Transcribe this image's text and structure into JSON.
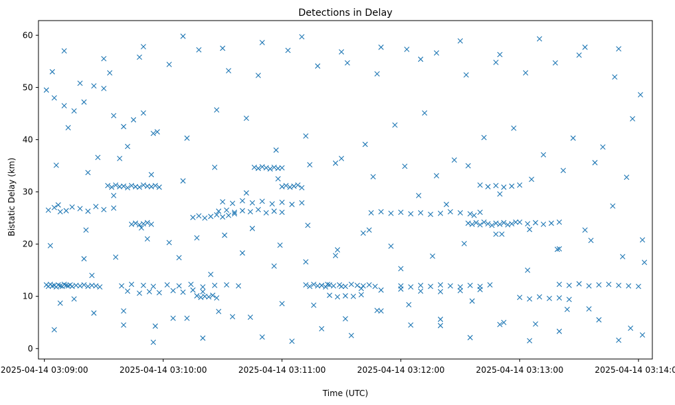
{
  "chart_data": {
    "type": "scatter",
    "title": "Detections in Delay",
    "xlabel": "Time (UTC)",
    "ylabel": "Bistatic Delay (km)",
    "xlim": [
      "2025-04-14 03:08:57",
      "2025-04-14 03:14:07"
    ],
    "ylim": [
      -2.0,
      62.8
    ],
    "x_ticks": [
      "2025-04-14 03:09:00",
      "2025-04-14 03:10:00",
      "2025-04-14 03:11:00",
      "2025-04-14 03:12:00",
      "2025-04-14 03:13:00",
      "2025-04-14 03:14:00"
    ],
    "y_ticks": [
      0,
      10,
      20,
      30,
      40,
      50,
      60
    ],
    "marker": "x",
    "color": "#1f77b4",
    "grid": false,
    "series": [
      {
        "x": [
          "2025-04-14 03:09:01",
          "2025-04-14 03:09:02",
          "2025-04-14 03:09:03",
          "2025-04-14 03:09:04",
          "2025-04-14 03:09:05",
          "2025-04-14 03:09:06",
          "2025-04-14 03:09:07",
          "2025-04-14 03:09:08",
          "2025-04-14 03:09:09",
          "2025-04-14 03:09:10",
          "2025-04-14 03:09:11",
          "2025-04-14 03:09:12",
          "2025-04-14 03:09:13",
          "2025-04-14 03:09:14",
          "2025-04-14 03:09:16",
          "2025-04-14 03:09:18",
          "2025-04-14 03:09:20",
          "2025-04-14 03:09:22",
          "2025-04-14 03:09:24",
          "2025-04-14 03:09:26",
          "2025-04-14 03:09:28",
          "2025-04-14 03:09:02",
          "2025-04-14 03:09:05",
          "2025-04-14 03:09:08",
          "2025-04-14 03:09:11",
          "2025-04-14 03:09:14",
          "2025-04-14 03:09:18",
          "2025-04-14 03:09:22",
          "2025-04-14 03:09:26",
          "2025-04-14 03:09:30",
          "2025-04-14 03:09:35",
          "2025-04-14 03:09:01",
          "2025-04-14 03:09:05",
          "2025-04-14 03:09:10",
          "2025-04-14 03:09:15",
          "2025-04-14 03:09:20",
          "2025-04-14 03:09:25",
          "2025-04-14 03:09:30",
          "2025-04-14 03:09:35",
          "2025-04-14 03:09:40",
          "2025-04-14 03:09:45",
          "2025-04-14 03:09:50",
          "2025-04-14 03:09:55",
          "2025-04-14 03:09:32",
          "2025-04-14 03:09:34",
          "2025-04-14 03:09:36",
          "2025-04-14 03:09:38",
          "2025-04-14 03:09:40",
          "2025-04-14 03:09:42",
          "2025-04-14 03:09:44",
          "2025-04-14 03:09:46",
          "2025-04-14 03:09:48",
          "2025-04-14 03:09:50",
          "2025-04-14 03:09:52",
          "2025-04-14 03:09:54",
          "2025-04-14 03:09:56",
          "2025-04-14 03:09:58",
          "2025-04-14 03:09:44",
          "2025-04-14 03:09:46",
          "2025-04-14 03:09:48",
          "2025-04-14 03:09:50",
          "2025-04-14 03:09:52",
          "2025-04-14 03:09:54",
          "2025-04-14 03:09:42",
          "2025-04-14 03:09:48",
          "2025-04-14 03:09:53",
          "2025-04-14 03:09:58",
          "2025-04-14 03:10:05",
          "2025-04-14 03:10:10",
          "2025-04-14 03:10:15",
          "2025-04-14 03:10:20",
          "2025-04-14 03:09:39",
          "2025-04-14 03:09:44",
          "2025-04-14 03:09:50",
          "2025-04-14 03:09:55",
          "2025-04-14 03:10:02",
          "2025-04-14 03:10:08",
          "2025-04-14 03:10:14",
          "2025-04-14 03:10:20",
          "2025-04-14 03:10:26",
          "2025-04-14 03:10:32",
          "2025-04-14 03:10:38",
          "2025-04-14 03:10:15",
          "2025-04-14 03:10:18",
          "2025-04-14 03:10:21",
          "2025-04-14 03:10:24",
          "2025-04-14 03:10:27",
          "2025-04-14 03:10:30",
          "2025-04-14 03:10:33",
          "2025-04-14 03:10:36",
          "2025-04-14 03:10:17",
          "2025-04-14 03:10:19",
          "2025-04-14 03:10:21",
          "2025-04-14 03:10:23",
          "2025-04-14 03:10:25",
          "2025-04-14 03:10:27",
          "2025-04-14 03:10:28",
          "2025-04-14 03:10:32",
          "2025-04-14 03:10:36",
          "2025-04-14 03:10:40",
          "2025-04-14 03:10:44",
          "2025-04-14 03:10:48",
          "2025-04-14 03:10:52",
          "2025-04-14 03:10:56",
          "2025-04-14 03:11:00",
          "2025-04-14 03:10:30",
          "2025-04-14 03:10:35",
          "2025-04-14 03:10:40",
          "2025-04-14 03:10:45",
          "2025-04-14 03:10:50",
          "2025-04-14 03:10:55",
          "2025-04-14 03:11:00",
          "2025-04-14 03:11:05",
          "2025-04-14 03:11:10",
          "2025-04-14 03:10:46",
          "2025-04-14 03:10:48",
          "2025-04-14 03:10:50",
          "2025-04-14 03:10:52",
          "2025-04-14 03:10:54",
          "2025-04-14 03:10:56",
          "2025-04-14 03:10:58",
          "2025-04-14 03:11:00",
          "2025-04-14 03:11:00",
          "2025-04-14 03:11:02",
          "2025-04-14 03:11:04",
          "2025-04-14 03:11:06",
          "2025-04-14 03:11:08",
          "2025-04-14 03:11:10",
          "2025-04-14 03:11:12",
          "2025-04-14 03:11:14",
          "2025-04-14 03:11:16",
          "2025-04-14 03:11:18",
          "2025-04-14 03:11:20",
          "2025-04-14 03:11:22",
          "2025-04-14 03:11:24",
          "2025-04-14 03:11:20",
          "2025-04-14 03:11:23",
          "2025-04-14 03:11:26",
          "2025-04-14 03:11:29",
          "2025-04-14 03:11:32",
          "2025-04-14 03:11:35",
          "2025-04-14 03:11:38",
          "2025-04-14 03:11:41",
          "2025-04-14 03:11:44",
          "2025-04-14 03:11:47",
          "2025-04-14 03:11:24",
          "2025-04-14 03:11:28",
          "2025-04-14 03:11:32",
          "2025-04-14 03:11:36",
          "2025-04-14 03:11:40",
          "2025-04-14 03:11:30",
          "2025-04-14 03:11:40",
          "2025-04-14 03:11:50",
          "2025-04-14 03:12:00",
          "2025-04-14 03:12:10",
          "2025-04-14 03:12:20",
          "2025-04-14 03:12:30",
          "2025-04-14 03:12:40",
          "2025-04-14 03:11:45",
          "2025-04-14 03:11:50",
          "2025-04-14 03:11:55",
          "2025-04-14 03:12:00",
          "2025-04-14 03:12:05",
          "2025-04-14 03:12:10",
          "2025-04-14 03:12:15",
          "2025-04-14 03:12:20",
          "2025-04-14 03:12:25",
          "2025-04-14 03:12:30",
          "2025-04-14 03:12:35",
          "2025-04-14 03:12:40",
          "2025-04-14 03:12:00",
          "2025-04-14 03:12:05",
          "2025-04-14 03:12:10",
          "2025-04-14 03:12:15",
          "2025-04-14 03:12:20",
          "2025-04-14 03:12:25",
          "2025-04-14 03:12:30",
          "2025-04-14 03:12:35",
          "2025-04-14 03:12:40",
          "2025-04-14 03:12:45",
          "2025-04-14 03:12:34",
          "2025-04-14 03:12:36",
          "2025-04-14 03:12:38",
          "2025-04-14 03:12:40",
          "2025-04-14 03:12:42",
          "2025-04-14 03:12:44",
          "2025-04-14 03:12:46",
          "2025-04-14 03:12:48",
          "2025-04-14 03:12:50",
          "2025-04-14 03:12:52",
          "2025-04-14 03:12:54",
          "2025-04-14 03:12:56",
          "2025-04-14 03:12:58",
          "2025-04-14 03:12:40",
          "2025-04-14 03:12:44",
          "2025-04-14 03:12:48",
          "2025-04-14 03:12:52",
          "2025-04-14 03:12:56",
          "2025-04-14 03:13:00",
          "2025-04-14 03:13:00",
          "2025-04-14 03:13:04",
          "2025-04-14 03:13:08",
          "2025-04-14 03:13:12",
          "2025-04-14 03:13:16",
          "2025-04-14 03:13:20",
          "2025-04-14 03:13:20",
          "2025-04-14 03:13:25",
          "2025-04-14 03:13:30",
          "2025-04-14 03:13:35",
          "2025-04-14 03:13:40",
          "2025-04-14 03:13:45",
          "2025-04-14 03:13:50",
          "2025-04-14 03:13:55",
          "2025-04-14 03:14:00",
          "2025-04-14 03:13:00",
          "2025-04-14 03:13:05",
          "2025-04-14 03:13:10",
          "2025-04-14 03:13:15",
          "2025-04-14 03:13:20",
          "2025-04-14 03:13:25",
          "2025-04-14 03:09:05",
          "2025-04-14 03:09:15",
          "2025-04-14 03:09:25",
          "2025-04-14 03:09:40",
          "2025-04-14 03:09:55",
          "2025-04-14 03:10:05",
          "2025-04-14 03:10:20",
          "2025-04-14 03:10:35",
          "2025-04-14 03:10:50",
          "2025-04-14 03:11:05",
          "2025-04-14 03:11:20",
          "2025-04-14 03:11:35",
          "2025-04-14 03:11:50",
          "2025-04-14 03:12:05",
          "2025-04-14 03:12:20",
          "2025-04-14 03:12:35",
          "2025-04-14 03:12:50",
          "2025-04-14 03:13:05",
          "2025-04-14 03:13:20",
          "2025-04-14 03:13:35",
          "2025-04-14 03:13:50",
          "2025-04-14 03:14:02",
          "2025-04-14 03:09:10",
          "2025-04-14 03:09:30",
          "2025-04-14 03:09:50",
          "2025-04-14 03:10:10",
          "2025-04-14 03:10:30",
          "2025-04-14 03:10:50",
          "2025-04-14 03:11:10",
          "2025-04-14 03:11:30",
          "2025-04-14 03:11:50",
          "2025-04-14 03:12:10",
          "2025-04-14 03:12:30",
          "2025-04-14 03:12:50",
          "2025-04-14 03:13:10",
          "2025-04-14 03:13:30",
          "2025-04-14 03:13:50",
          "2025-04-14 03:09:12",
          "2025-04-14 03:09:27",
          "2025-04-14 03:09:42",
          "2025-04-14 03:09:57",
          "2025-04-14 03:10:12",
          "2025-04-14 03:10:27",
          "2025-04-14 03:10:42",
          "2025-04-14 03:10:57",
          "2025-04-14 03:11:12",
          "2025-04-14 03:11:27",
          "2025-04-14 03:11:42",
          "2025-04-14 03:11:57",
          "2025-04-14 03:12:12",
          "2025-04-14 03:12:27",
          "2025-04-14 03:12:42",
          "2025-04-14 03:12:57",
          "2025-04-14 03:13:12",
          "2025-04-14 03:13:27",
          "2025-04-14 03:13:42",
          "2025-04-14 03:13:57",
          "2025-04-14 03:09:03",
          "2025-04-14 03:09:20",
          "2025-04-14 03:09:36",
          "2025-04-14 03:09:52",
          "2025-04-14 03:10:08",
          "2025-04-14 03:10:24",
          "2025-04-14 03:10:40",
          "2025-04-14 03:10:56",
          "2025-04-14 03:11:12",
          "2025-04-14 03:11:28",
          "2025-04-14 03:11:44",
          "2025-04-14 03:12:00",
          "2025-04-14 03:12:16",
          "2025-04-14 03:12:32",
          "2025-04-14 03:12:48",
          "2025-04-14 03:13:04",
          "2025-04-14 03:13:20",
          "2025-04-14 03:13:36",
          "2025-04-14 03:13:52",
          "2025-04-14 03:14:03",
          "2025-04-14 03:09:06",
          "2025-04-14 03:09:22",
          "2025-04-14 03:09:38",
          "2025-04-14 03:09:54",
          "2025-04-14 03:10:10",
          "2025-04-14 03:10:26",
          "2025-04-14 03:10:42",
          "2025-04-14 03:10:58",
          "2025-04-14 03:11:14",
          "2025-04-14 03:11:30",
          "2025-04-14 03:11:46",
          "2025-04-14 03:12:02",
          "2025-04-14 03:12:18",
          "2025-04-14 03:12:34",
          "2025-04-14 03:12:50",
          "2025-04-14 03:13:06",
          "2025-04-14 03:13:22",
          "2025-04-14 03:13:38",
          "2025-04-14 03:13:54",
          "2025-04-14 03:09:08",
          "2025-04-14 03:09:24",
          "2025-04-14 03:09:40",
          "2025-04-14 03:09:56",
          "2025-04-14 03:10:12",
          "2025-04-14 03:10:28",
          "2025-04-14 03:10:44",
          "2025-04-14 03:11:00",
          "2025-04-14 03:11:16",
          "2025-04-14 03:11:32",
          "2025-04-14 03:11:48",
          "2025-04-14 03:12:04",
          "2025-04-14 03:12:20",
          "2025-04-14 03:12:36",
          "2025-04-14 03:12:52",
          "2025-04-14 03:13:08",
          "2025-04-14 03:13:24",
          "2025-04-14 03:13:40",
          "2025-04-14 03:13:56",
          "2025-04-14 03:09:04",
          "2025-04-14 03:09:18",
          "2025-04-14 03:09:33",
          "2025-04-14 03:09:48",
          "2025-04-14 03:10:03",
          "2025-04-14 03:10:18",
          "2025-04-14 03:10:33",
          "2025-04-14 03:10:48",
          "2025-04-14 03:11:03",
          "2025-04-14 03:11:18",
          "2025-04-14 03:11:33",
          "2025-04-14 03:11:48",
          "2025-04-14 03:12:03",
          "2025-04-14 03:12:18",
          "2025-04-14 03:12:33",
          "2025-04-14 03:12:48",
          "2025-04-14 03:13:03",
          "2025-04-14 03:13:18",
          "2025-04-14 03:13:33",
          "2025-04-14 03:13:48",
          "2025-04-14 03:14:01",
          "2025-04-14 03:09:07",
          "2025-04-14 03:09:21",
          "2025-04-14 03:09:35",
          "2025-04-14 03:09:49",
          "2025-04-14 03:10:03",
          "2025-04-14 03:10:17",
          "2025-04-14 03:10:31",
          "2025-04-14 03:10:45",
          "2025-04-14 03:10:59",
          "2025-04-14 03:11:13",
          "2025-04-14 03:11:27",
          "2025-04-14 03:11:41",
          "2025-04-14 03:11:55",
          "2025-04-14 03:12:09",
          "2025-04-14 03:12:23",
          "2025-04-14 03:12:37",
          "2025-04-14 03:12:51",
          "2025-04-14 03:13:05",
          "2025-04-14 03:13:19",
          "2025-04-14 03:13:33",
          "2025-04-14 03:13:47",
          "2025-04-14 03:14:02"
        ],
        "y": [
          12.2,
          11.9,
          12.3,
          12.0,
          12.1,
          11.8,
          12.2,
          12.0,
          11.9,
          12.3,
          12.1,
          12.0,
          12.2,
          11.9,
          12.1,
          12.0,
          12.2,
          11.9,
          12.1,
          12.0,
          11.8,
          26.5,
          27.0,
          26.2,
          26.4,
          27.1,
          26.8,
          26.3,
          27.2,
          26.6,
          26.9,
          49.5,
          48.0,
          46.5,
          45.5,
          47.2,
          50.3,
          49.8,
          44.6,
          42.5,
          43.8,
          45.1,
          41.2,
          31.2,
          30.9,
          31.3,
          31.0,
          31.1,
          30.8,
          31.2,
          31.0,
          30.9,
          31.3,
          31.1,
          31.0,
          31.2,
          30.9,
          23.8,
          24.0,
          23.7,
          23.9,
          24.1,
          23.8,
          11.0,
          10.6,
          10.9,
          10.7,
          11.1,
          10.8,
          11.2,
          10.9,
          12.0,
          12.3,
          12.1,
          11.9,
          12.2,
          12.0,
          12.3,
          11.8,
          12.1,
          12.2,
          12.0,
          25.1,
          25.4,
          25.0,
          25.3,
          25.6,
          25.2,
          25.5,
          25.8,
          10.1,
          9.8,
          10.0,
          9.9,
          10.2,
          9.7,
          26.3,
          26.5,
          26.1,
          26.4,
          26.2,
          26.6,
          26.0,
          26.3,
          26.1,
          28.1,
          27.8,
          28.3,
          27.9,
          28.2,
          27.7,
          28.0,
          27.6,
          27.9,
          34.7,
          34.5,
          34.8,
          34.6,
          34.4,
          34.7,
          34.5,
          34.6,
          31.0,
          31.2,
          30.9,
          31.1,
          31.3,
          30.8,
          12.2,
          11.9,
          12.3,
          12.0,
          12.1,
          11.8,
          12.2,
          12.1,
          12.3,
          12.0,
          12.2,
          11.9,
          12.3,
          12.1,
          12.0,
          12.2,
          11.9,
          10.2,
          9.9,
          10.1,
          10.0,
          10.3,
          11.9,
          11.5,
          11.2,
          11.4,
          11.0,
          10.9,
          11.1,
          11.3,
          26.0,
          26.2,
          25.9,
          26.1,
          25.8,
          26.0,
          25.7,
          25.9,
          26.2,
          26.0,
          25.8,
          26.1,
          12.0,
          11.8,
          12.1,
          11.9,
          12.2,
          12.0,
          11.8,
          12.1,
          11.9,
          12.2,
          24.0,
          23.8,
          24.1,
          23.7,
          24.2,
          23.9,
          23.6,
          24.0,
          23.8,
          24.1,
          23.7,
          23.9,
          24.2,
          31.3,
          31.0,
          31.2,
          30.9,
          31.1,
          31.3,
          24.2,
          23.9,
          24.1,
          23.8,
          24.0,
          24.2,
          12.3,
          12.1,
          12.4,
          12.0,
          12.2,
          12.3,
          12.1,
          12.0,
          11.9,
          9.8,
          9.5,
          9.9,
          9.6,
          9.7,
          9.4,
          3.6,
          9.5,
          6.8,
          4.5,
          1.2,
          5.8,
          2.0,
          6.1,
          2.2,
          1.4,
          3.8,
          2.5,
          7.2,
          4.5,
          5.6,
          2.1,
          4.6,
          1.5,
          3.3,
          7.6,
          1.6,
          2.6,
          57.0,
          55.5,
          57.8,
          59.8,
          57.5,
          58.6,
          59.7,
          56.8,
          57.7,
          55.4,
          58.9,
          56.3,
          59.3,
          56.2,
          57.4,
          42.3,
          36.6,
          38.7,
          41.5,
          40.3,
          45.7,
          44.1,
          38.0,
          40.7,
          35.5,
          39.1,
          42.8,
          45.1,
          36.1,
          40.4,
          42.2,
          37.1,
          40.3,
          38.6,
          44.0,
          19.7,
          17.2,
          17.5,
          21.0,
          17.4,
          14.2,
          18.3,
          15.8,
          16.6,
          18.9,
          22.7,
          15.3,
          17.7,
          20.1,
          21.9,
          15.0,
          19.1,
          20.7,
          17.6,
          16.5,
          35.1,
          33.7,
          36.4,
          33.3,
          32.1,
          34.7,
          29.8,
          32.5,
          35.2,
          36.4,
          32.9,
          34.9,
          33.1,
          35.0,
          29.6,
          32.4,
          34.1,
          35.6,
          32.8,
          8.7,
          14.0,
          7.2,
          4.3,
          5.8,
          7.1,
          6.0,
          8.6,
          8.3,
          5.7,
          7.3,
          8.4,
          4.4,
          9.1,
          5.0,
          4.7,
          7.5,
          5.5,
          3.9,
          53.0,
          50.8,
          52.8,
          55.8,
          54.4,
          57.2,
          53.2,
          52.3,
          57.1,
          54.1,
          54.7,
          52.6,
          57.3,
          56.6,
          52.4,
          54.8,
          52.8,
          54.7,
          57.7,
          52.0,
          48.6,
          27.5,
          22.7,
          29.3,
          23.1,
          20.3,
          21.2,
          21.7,
          23.0,
          19.8,
          23.6,
          17.8,
          22.1,
          19.6,
          29.3,
          27.6,
          25.5,
          21.9,
          22.8,
          19.0,
          22.7,
          27.3,
          20.8
        ]
      }
    ]
  }
}
